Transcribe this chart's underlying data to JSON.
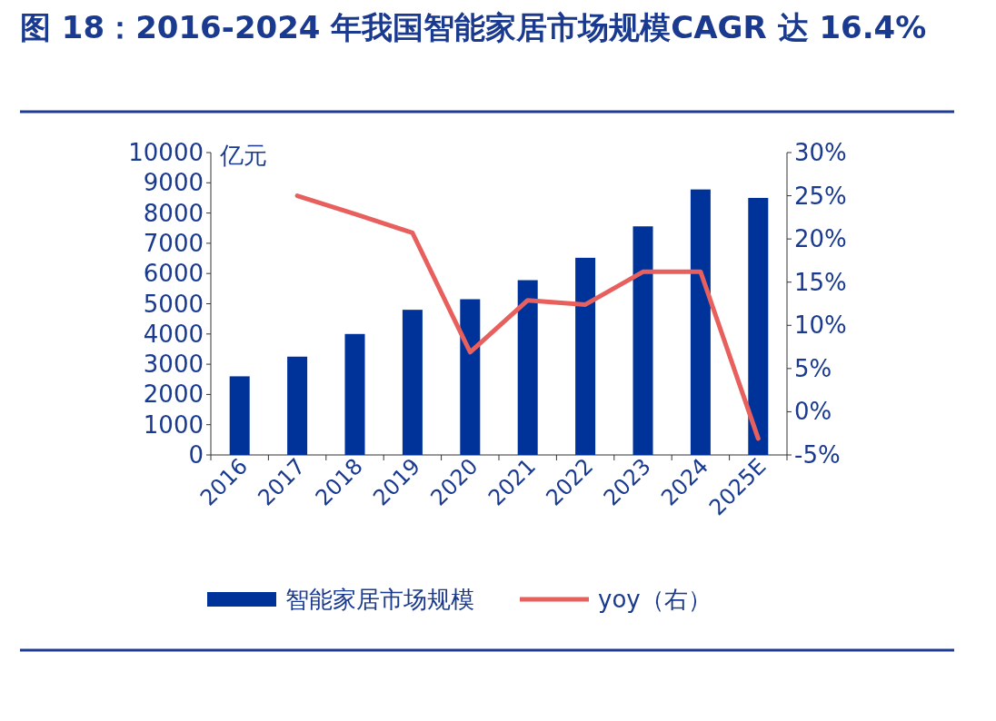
{
  "chart_data": {
    "type": "bar",
    "title": "图 18：2016-2024 年我国智能家居市场规模CAGR 达 16.4%",
    "ylabel": "亿元",
    "categories": [
      "2016",
      "2017",
      "2018",
      "2019",
      "2020",
      "2021",
      "2022",
      "2023",
      "2024",
      "2025E"
    ],
    "series": [
      {
        "name": "智能家居市场规模",
        "color": "#003399",
        "values": [
          2600,
          3250,
          4000,
          4800,
          5150,
          5780,
          6520,
          7560,
          8780,
          8500
        ]
      },
      {
        "name": "yoy（右）",
        "type": "line",
        "axis": "y2",
        "color": "#e8605e",
        "values": [
          null,
          25.0,
          22.9,
          20.7,
          6.9,
          12.9,
          12.4,
          16.2,
          16.2,
          -3.1
        ]
      }
    ],
    "ylim": [
      0,
      10000
    ],
    "yticks": [
      0,
      1000,
      2000,
      3000,
      4000,
      5000,
      6000,
      7000,
      8000,
      9000,
      10000
    ],
    "y2lim": [
      -5,
      30
    ],
    "y2ticks": [
      {
        "value": -5,
        "label": "-5%"
      },
      {
        "value": 0,
        "label": "0%"
      },
      {
        "value": 5,
        "label": "5%"
      },
      {
        "value": 10,
        "label": "10%"
      },
      {
        "value": 15,
        "label": "15%"
      },
      {
        "value": 20,
        "label": "20%"
      },
      {
        "value": 25,
        "label": "25%"
      },
      {
        "value": 30,
        "label": "30%"
      }
    ],
    "legend": "bottom"
  }
}
